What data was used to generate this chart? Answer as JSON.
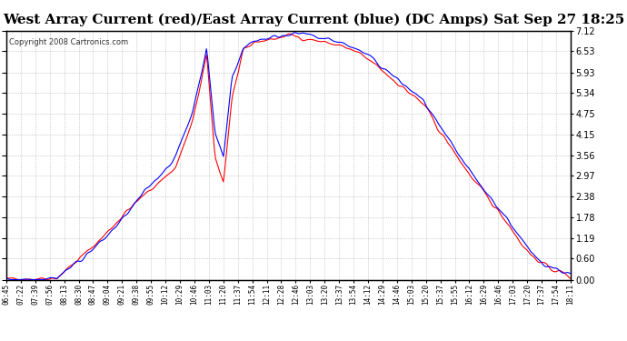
{
  "title": "West Array Current (red)/East Array Current (blue) (DC Amps) Sat Sep 27 18:25",
  "copyright": "Copyright 2008 Cartronics.com",
  "bg_color": "#ffffff",
  "plot_bg_color": "#ffffff",
  "grid_color": "#aaaaaa",
  "red_color": "#ff0000",
  "blue_color": "#0000ff",
  "title_fontsize": 11,
  "yticks": [
    0.0,
    0.6,
    1.19,
    1.78,
    2.38,
    2.97,
    3.56,
    4.15,
    4.75,
    5.34,
    5.93,
    6.53,
    7.12
  ],
  "ylim": [
    0.0,
    7.12
  ],
  "xtick_labels": [
    "06:45",
    "07:22",
    "07:39",
    "07:56",
    "08:13",
    "08:30",
    "08:47",
    "09:04",
    "09:21",
    "09:38",
    "09:55",
    "10:12",
    "10:29",
    "10:46",
    "11:03",
    "11:20",
    "11:37",
    "11:54",
    "12:11",
    "12:28",
    "12:46",
    "13:03",
    "13:20",
    "13:37",
    "13:54",
    "14:12",
    "14:29",
    "14:46",
    "15:03",
    "15:20",
    "15:37",
    "15:55",
    "16:12",
    "16:29",
    "16:46",
    "17:03",
    "17:20",
    "17:37",
    "17:54",
    "18:11"
  ]
}
